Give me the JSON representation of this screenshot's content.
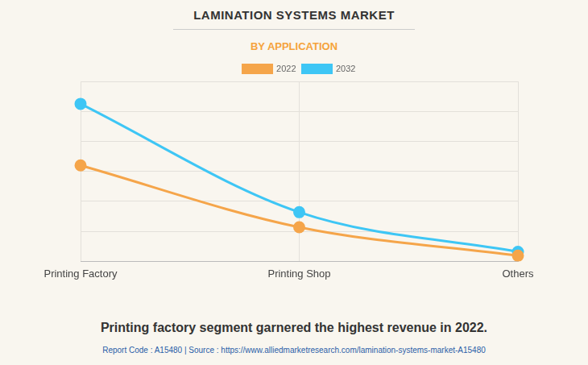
{
  "chart_data": {
    "type": "line",
    "title": "LAMINATION SYSTEMS MARKET",
    "subtitle": "BY APPLICATION",
    "caption": "Printing factory segment garnered the highest revenue in 2022.",
    "source": "Report Code : A15480  |  Source : https://www.alliedmarketresearch.com/lamination-systems-market-A15480",
    "categories": [
      "Printing Factory",
      "Printing Shop",
      "Others"
    ],
    "series": [
      {
        "name": "2022",
        "color": "#f5a54a",
        "values": [
          3.2,
          1.14,
          0.19
        ]
      },
      {
        "name": "2032",
        "color": "#3ec6f5",
        "values": [
          5.25,
          1.64,
          0.32
        ]
      }
    ],
    "ylim": [
      0,
      6
    ],
    "yticks": [
      0,
      1,
      2,
      3,
      4,
      5,
      6
    ],
    "grid": true,
    "legend": "top",
    "tick_labels": "x",
    "marker": "circle"
  }
}
